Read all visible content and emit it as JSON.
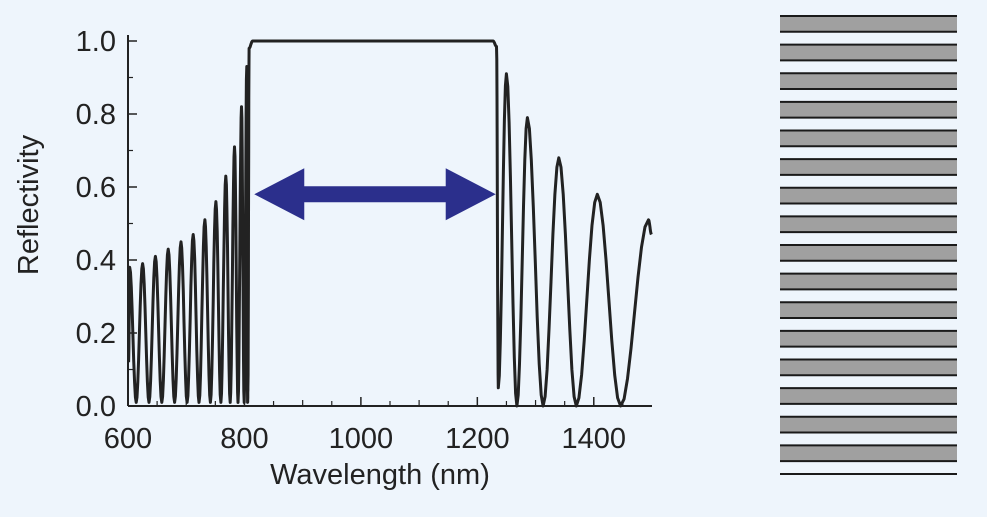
{
  "chart_data": {
    "type": "line",
    "xlabel": "Wavelength (nm)",
    "ylabel": "Reflectivity",
    "xlim": [
      600,
      1500
    ],
    "ylim": [
      0.0,
      1.0
    ],
    "x_ticks": [
      600,
      800,
      1000,
      1200,
      1400
    ],
    "x_tick_labels": [
      "600",
      "800",
      "1000",
      "1200",
      "1400"
    ],
    "y_ticks": [
      0.0,
      0.2,
      0.4,
      0.6,
      0.8,
      1.0
    ],
    "y_tick_labels": [
      "0.0",
      "0.2",
      "0.4",
      "0.6",
      "0.8",
      "1.0"
    ],
    "grid": false,
    "stopband": {
      "x_start": 810,
      "x_end": 1235,
      "reflectivity": 1.0
    },
    "left_sidelobes": [
      {
        "x": 603,
        "y": 0.38
      },
      {
        "x": 625,
        "y": 0.39
      },
      {
        "x": 647,
        "y": 0.41
      },
      {
        "x": 669,
        "y": 0.43
      },
      {
        "x": 691,
        "y": 0.45
      },
      {
        "x": 712,
        "y": 0.47
      },
      {
        "x": 732,
        "y": 0.51
      },
      {
        "x": 751,
        "y": 0.56
      },
      {
        "x": 768,
        "y": 0.63
      },
      {
        "x": 783,
        "y": 0.71
      },
      {
        "x": 795,
        "y": 0.82
      },
      {
        "x": 804,
        "y": 0.93
      }
    ],
    "right_sidelobes": [
      {
        "x": 1250,
        "y": 0.91
      },
      {
        "x": 1286,
        "y": 0.79
      },
      {
        "x": 1340,
        "y": 0.68
      },
      {
        "x": 1406,
        "y": 0.58
      },
      {
        "x": 1494,
        "y": 0.51
      }
    ],
    "right_minima": [
      1268,
      1313,
      1370,
      1446
    ],
    "annotation": {
      "type": "double-arrow",
      "x_start": 810,
      "x_end": 1235,
      "y": 0.58
    },
    "line_color": "#222222",
    "arrow_color": "#2b2f8c"
  },
  "layer_stack": {
    "description_colors": {
      "high_index": "#a0a0a0",
      "low_index": "#eef5fc",
      "interface": "#1a1a1a"
    },
    "layer_count": 16
  }
}
